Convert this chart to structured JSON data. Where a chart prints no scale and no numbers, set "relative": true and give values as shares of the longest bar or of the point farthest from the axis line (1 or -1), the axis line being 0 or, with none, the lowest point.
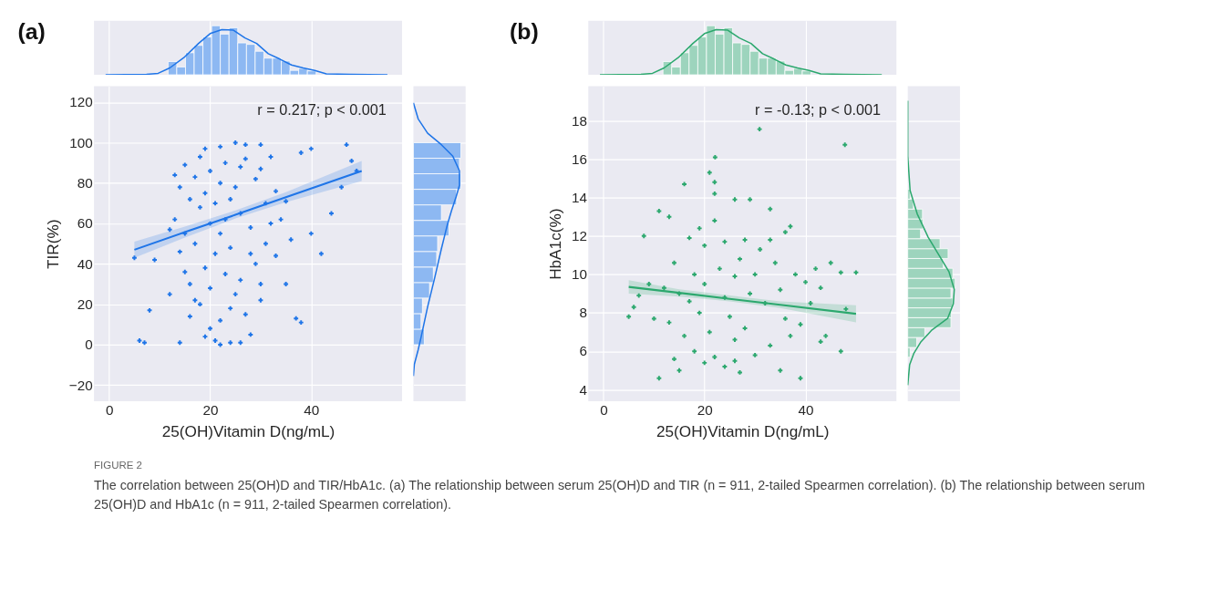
{
  "chart_data": [
    {
      "type": "histogram",
      "title": "(a)",
      "relative": true,
      "tick_labels": false,
      "grid": "x",
      "xlim": [
        -3,
        58
      ],
      "xticks": [
        0,
        20,
        40
      ],
      "color": "#8db8f2",
      "bins": [
        11.67,
        13.39,
        15.12,
        16.84,
        18.57,
        20.29,
        22.01,
        23.74,
        25.46,
        27.19,
        28.91,
        30.63,
        32.36,
        34.08,
        35.81,
        37.53,
        39.25,
        40.98
      ],
      "values": [
        0.27,
        0.16,
        0.45,
        0.6,
        0.77,
        1,
        0.83,
        0.96,
        0.65,
        0.62,
        0.48,
        0.34,
        0.34,
        0.28,
        0.09,
        0.13,
        0.08
      ],
      "series": [
        {
          "type": "line",
          "color": "#1f75e8",
          "x": [
            -0.7,
            7.4,
            9.7,
            12,
            14.8,
            17.7,
            20,
            22.3,
            24.6,
            26.9,
            29.2,
            31.5,
            33.8,
            36.1,
            38.4,
            40.7,
            43,
            47.6,
            55.1
          ],
          "values": [
            0,
            0.01,
            0.03,
            0.14,
            0.35,
            0.64,
            0.84,
            0.92,
            0.91,
            0.75,
            0.64,
            0.43,
            0.32,
            0.2,
            0.14,
            0.09,
            0.02,
            0.01,
            0
          ]
        }
      ]
    },
    {
      "type": "scatter",
      "xlabel": "25(OH)Vitamin D(ng/mL)",
      "ylabel": "TIR(%)",
      "grid": true,
      "xlim": [
        -3,
        58
      ],
      "xticks": [
        0,
        20,
        40
      ],
      "ylim": [
        -28,
        128
      ],
      "yticks": [
        -20,
        0,
        20,
        40,
        60,
        80,
        100,
        120
      ],
      "annotations": [
        "r = 0.217; p < 0.001"
      ],
      "series": [
        {
          "type": "scatter",
          "marker": "cross",
          "color": "#1f75e8",
          "x": [
            5,
            6,
            7,
            8,
            9,
            12,
            13,
            14,
            15,
            16,
            17,
            17,
            18,
            19,
            21,
            22,
            24,
            26,
            28,
            30,
            35,
            37,
            38,
            40,
            42,
            44,
            47,
            48,
            49,
            46,
            40,
            38,
            35,
            33,
            32,
            30,
            27,
            25,
            22,
            19,
            15,
            14,
            13,
            16,
            18,
            20,
            22,
            24,
            21,
            19,
            23,
            26,
            25,
            20,
            18,
            22,
            27,
            29,
            31,
            28,
            26,
            24,
            22,
            20,
            23,
            26,
            29,
            31,
            34,
            36,
            33,
            30,
            17,
            15,
            12,
            14,
            21,
            25,
            27,
            30,
            32,
            19,
            23,
            16,
            28,
            24,
            20
          ],
          "values": [
            43,
            2,
            1,
            17,
            42,
            57,
            62,
            1,
            36,
            14,
            22,
            83,
            93,
            4,
            2,
            0,
            1,
            1,
            5,
            22,
            30,
            13,
            11,
            55,
            45,
            65,
            99,
            91,
            86,
            78,
            97,
            95,
            71,
            76,
            93,
            99,
            99,
            100,
            98,
            97,
            89,
            78,
            84,
            72,
            68,
            60,
            55,
            48,
            45,
            38,
            35,
            32,
            25,
            28,
            20,
            12,
            15,
            40,
            50,
            58,
            65,
            72,
            80,
            86,
            90,
            88,
            82,
            70,
            62,
            52,
            44,
            30,
            50,
            55,
            25,
            46,
            70,
            78,
            92,
            87,
            60,
            75,
            62,
            30,
            45,
            18,
            8
          ]
        },
        {
          "type": "line",
          "color": "#1f75e8",
          "x": [
            5,
            15,
            25,
            35,
            50
          ],
          "values": [
            47,
            55.7,
            64.3,
            73,
            86
          ],
          "lower": [
            43,
            53,
            62.5,
            70.5,
            81
          ],
          "upper": [
            51,
            58.5,
            66.5,
            75.5,
            91
          ]
        }
      ]
    },
    {
      "type": "histogram",
      "orientation": "horizontal",
      "relative": true,
      "tick_labels": false,
      "grid": "y",
      "ylim": [
        -28,
        128
      ],
      "yticks": [
        -20,
        0,
        20,
        40,
        60,
        80,
        100,
        120
      ],
      "color": "#8db8f2",
      "bins": [
        0,
        7.69,
        15.38,
        23.08,
        30.77,
        38.46,
        46.15,
        53.85,
        61.54,
        69.23,
        76.92,
        84.62,
        92.31,
        100
      ],
      "values": [
        0.23,
        0.16,
        0.19,
        0.34,
        0.42,
        0.49,
        0.51,
        0.75,
        0.59,
        0.91,
        1,
        0.97,
        1
      ],
      "series": [
        {
          "type": "line",
          "color": "#1f75e8",
          "x": [
            119.7,
            111.8,
            104.7,
            99,
            93.3,
            86.1,
            78.9,
            73.2,
            66.1,
            58.9,
            47.5,
            33.2,
            18.8,
            4.6,
            -2.6,
            -9.7,
            -15.5
          ],
          "values": [
            0,
            0.1,
            0.3,
            0.59,
            0.83,
            0.97,
            0.97,
            0.9,
            0.8,
            0.71,
            0.59,
            0.45,
            0.3,
            0.17,
            0.1,
            0.02,
            0
          ]
        }
      ]
    },
    {
      "type": "histogram",
      "title": "(b)",
      "relative": true,
      "tick_labels": false,
      "grid": "x",
      "xlim": [
        -3,
        58
      ],
      "xticks": [
        0,
        20,
        40
      ],
      "color": "#9dd4bd",
      "bins": [
        11.78,
        13.5,
        15.23,
        16.95,
        18.68,
        20.4,
        22.12,
        23.85,
        25.57,
        27.3,
        29.02,
        30.74,
        32.47,
        34.19,
        35.92,
        37.64,
        39.36,
        41.09
      ],
      "values": [
        0.27,
        0.16,
        0.45,
        0.6,
        0.77,
        1,
        0.83,
        0.96,
        0.65,
        0.62,
        0.48,
        0.34,
        0.34,
        0.28,
        0.09,
        0.13,
        0.08
      ],
      "series": [
        {
          "type": "line",
          "color": "#2ca86e",
          "x": [
            -0.7,
            7.4,
            9.7,
            12,
            14.8,
            17.7,
            20,
            22.3,
            24.6,
            26.9,
            29.2,
            31.5,
            33.8,
            36.1,
            38.4,
            40.7,
            43,
            47.6,
            55.1
          ],
          "values": [
            0,
            0.01,
            0.03,
            0.14,
            0.35,
            0.64,
            0.84,
            0.92,
            0.91,
            0.75,
            0.64,
            0.43,
            0.32,
            0.2,
            0.14,
            0.09,
            0.02,
            0.01,
            0
          ]
        }
      ]
    },
    {
      "type": "scatter",
      "xlabel": "25(OH)Vitamin D(ng/mL)",
      "ylabel": "HbA1c(%)",
      "grid": true,
      "xlim": [
        -3,
        58
      ],
      "xticks": [
        0,
        20,
        40
      ],
      "ylim": [
        3.4,
        19.8
      ],
      "yticks": [
        4,
        6,
        8,
        10,
        12,
        14,
        16,
        18
      ],
      "annotations": [
        "r = -0.13; p < 0.001"
      ],
      "series": [
        {
          "type": "scatter",
          "marker": "cross",
          "color": "#2ca86e",
          "x": [
            30.9,
            47.8,
            22.1,
            21,
            22,
            22,
            16,
            11,
            8,
            13,
            29,
            33,
            26,
            37,
            36,
            45,
            47,
            50,
            43,
            48,
            44,
            47,
            43,
            39,
            35,
            27,
            24,
            15,
            11,
            14,
            6,
            7,
            5,
            9,
            12,
            10,
            14,
            17,
            19,
            20,
            24,
            28,
            31,
            34,
            38,
            40,
            41,
            39,
            37,
            33,
            30,
            26,
            22,
            18,
            16,
            13,
            17,
            20,
            23,
            26,
            29,
            32,
            35,
            28,
            25,
            21,
            19,
            24,
            27,
            30,
            22,
            18,
            15,
            36,
            33,
            42,
            26,
            20
          ],
          "values": [
            17.56,
            16.75,
            16.1,
            15.3,
            14.8,
            14.2,
            14.7,
            13.3,
            12,
            13,
            13.9,
            13.4,
            13.9,
            12.5,
            12.2,
            10.6,
            10.1,
            10.1,
            9.3,
            8.2,
            6.8,
            6,
            6.5,
            4.6,
            5,
            4.9,
            5.2,
            5,
            4.6,
            5.6,
            8.3,
            8.9,
            7.8,
            9.5,
            9.3,
            7.7,
            10.6,
            11.9,
            12.4,
            11.5,
            11.7,
            11.8,
            11.3,
            10.6,
            10,
            9.6,
            8.5,
            7.4,
            6.8,
            6.3,
            5.8,
            5.5,
            5.7,
            6,
            6.8,
            7.5,
            8.6,
            9.5,
            10.3,
            9.9,
            9,
            8.5,
            9.2,
            7.2,
            7.8,
            7,
            8,
            8.8,
            10.8,
            10,
            12.8,
            10,
            9,
            7.7,
            11.8,
            10.3,
            6.6,
            5.4
          ]
        },
        {
          "type": "line",
          "color": "#2ca86e",
          "x": [
            5,
            15,
            25,
            35,
            50
          ],
          "values": [
            9.35,
            9.04,
            8.73,
            8.42,
            7.95
          ],
          "lower": [
            9,
            8.85,
            8.6,
            8.25,
            7.5
          ],
          "upper": [
            9.7,
            9.23,
            8.9,
            8.6,
            8.4
          ]
        }
      ]
    },
    {
      "type": "histogram",
      "orientation": "horizontal",
      "relative": true,
      "tick_labels": false,
      "grid": "y",
      "ylim": [
        3.4,
        19.8
      ],
      "yticks": [
        4,
        6,
        8,
        10,
        12,
        14,
        16,
        18
      ],
      "color": "#9dd4bd",
      "bins": [
        5.69,
        6.2,
        6.72,
        7.23,
        7.75,
        8.26,
        8.77,
        9.29,
        9.8,
        10.32,
        10.83,
        11.34,
        11.86,
        12.37,
        12.89,
        13.4,
        13.92,
        14.43
      ],
      "values": [
        0.05,
        0.19,
        0.36,
        0.91,
        0.92,
        0.95,
        0.91,
        1,
        0.95,
        0.75,
        0.85,
        0.68,
        0.27,
        0.32,
        0.31,
        0.12,
        0.05
      ],
      "series": [
        {
          "type": "line",
          "color": "#2ca86e",
          "x": [
            19.04,
            16.17,
            14.36,
            13.15,
            11.94,
            11.04,
            10.13,
            9.22,
            8.47,
            7.71,
            7.11,
            6.5,
            5.9,
            5.3,
            4.24
          ],
          "values": [
            0,
            0,
            0.05,
            0.2,
            0.43,
            0.65,
            0.87,
            0.98,
            0.96,
            0.84,
            0.51,
            0.28,
            0.13,
            0.04,
            0
          ]
        }
      ]
    },
    {
      "type": "other",
      "annotations": [
        "FIGURE 2",
        "The correlation between 25(OH)D and TIR/HbA1c. (a) The relationship between serum 25(OH)D and TIR (n = 911, 2-tailed Spearmen correlation). (b) The relationship between serum 25(OH)D and HbA1c (n = 911, 2-tailed Spearmen correlation)."
      ]
    }
  ]
}
